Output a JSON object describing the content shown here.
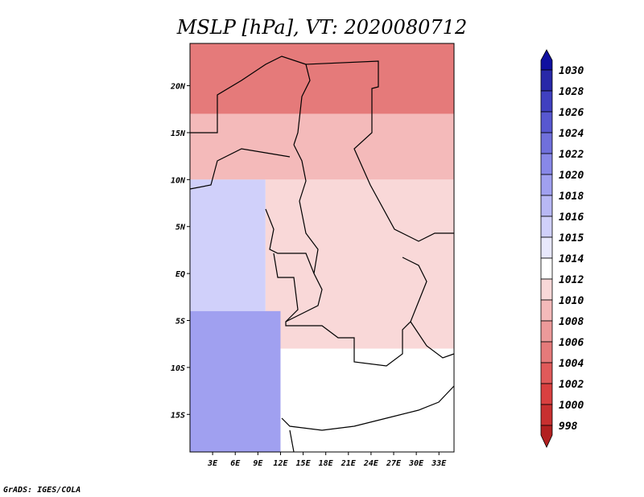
{
  "chart_data": {
    "type": "heatmap",
    "title": "MSLP [hPa], VT: 2020080712",
    "x_ticks": [
      "3E",
      "6E",
      "9E",
      "12E",
      "15E",
      "18E",
      "21E",
      "24E",
      "27E",
      "30E",
      "33E"
    ],
    "y_ticks": [
      "20N",
      "15N",
      "10N",
      "5N",
      "EQ",
      "5S",
      "10S",
      "15S"
    ],
    "xlim": [
      0,
      35
    ],
    "ylim": [
      -19,
      24.5
    ],
    "colorbar": {
      "levels": [
        "998",
        "1000",
        "1002",
        "1004",
        "1006",
        "1008",
        "1010",
        "1012",
        "1014",
        "1015",
        "1016",
        "1018",
        "1020",
        "1022",
        "1024",
        "1026",
        "1028",
        "1030"
      ],
      "colors": [
        "#b22020",
        "#c83030",
        "#d94040",
        "#e05a5a",
        "#e57a7a",
        "#ec9a9a",
        "#f4baba",
        "#f9d8d8",
        "#ffffff",
        "#e8e8fc",
        "#d0d0fa",
        "#b8b8f5",
        "#a0a0f0",
        "#8888e8",
        "#7070dc",
        "#5858d0",
        "#4040c0",
        "#2828a8",
        "#1010a0"
      ]
    },
    "regions": [
      {
        "value": 1004,
        "lon": [
          0,
          35
        ],
        "lat": [
          17,
          24.5
        ]
      },
      {
        "value": 1008,
        "lon": [
          0,
          35
        ],
        "lat": [
          10,
          17
        ]
      },
      {
        "value": 1010,
        "lon": [
          10,
          35
        ],
        "lat": [
          -8,
          10
        ]
      },
      {
        "value": 1012,
        "lon": [
          8,
          35
        ],
        "lat": [
          -16,
          -8
        ]
      },
      {
        "value": 1015,
        "lon": [
          0,
          10
        ],
        "lat": [
          -4,
          10
        ]
      },
      {
        "value": 1018,
        "lon": [
          0,
          12
        ],
        "lat": [
          -19,
          -4
        ]
      }
    ]
  },
  "credit": "GrADS: IGES/COLA"
}
